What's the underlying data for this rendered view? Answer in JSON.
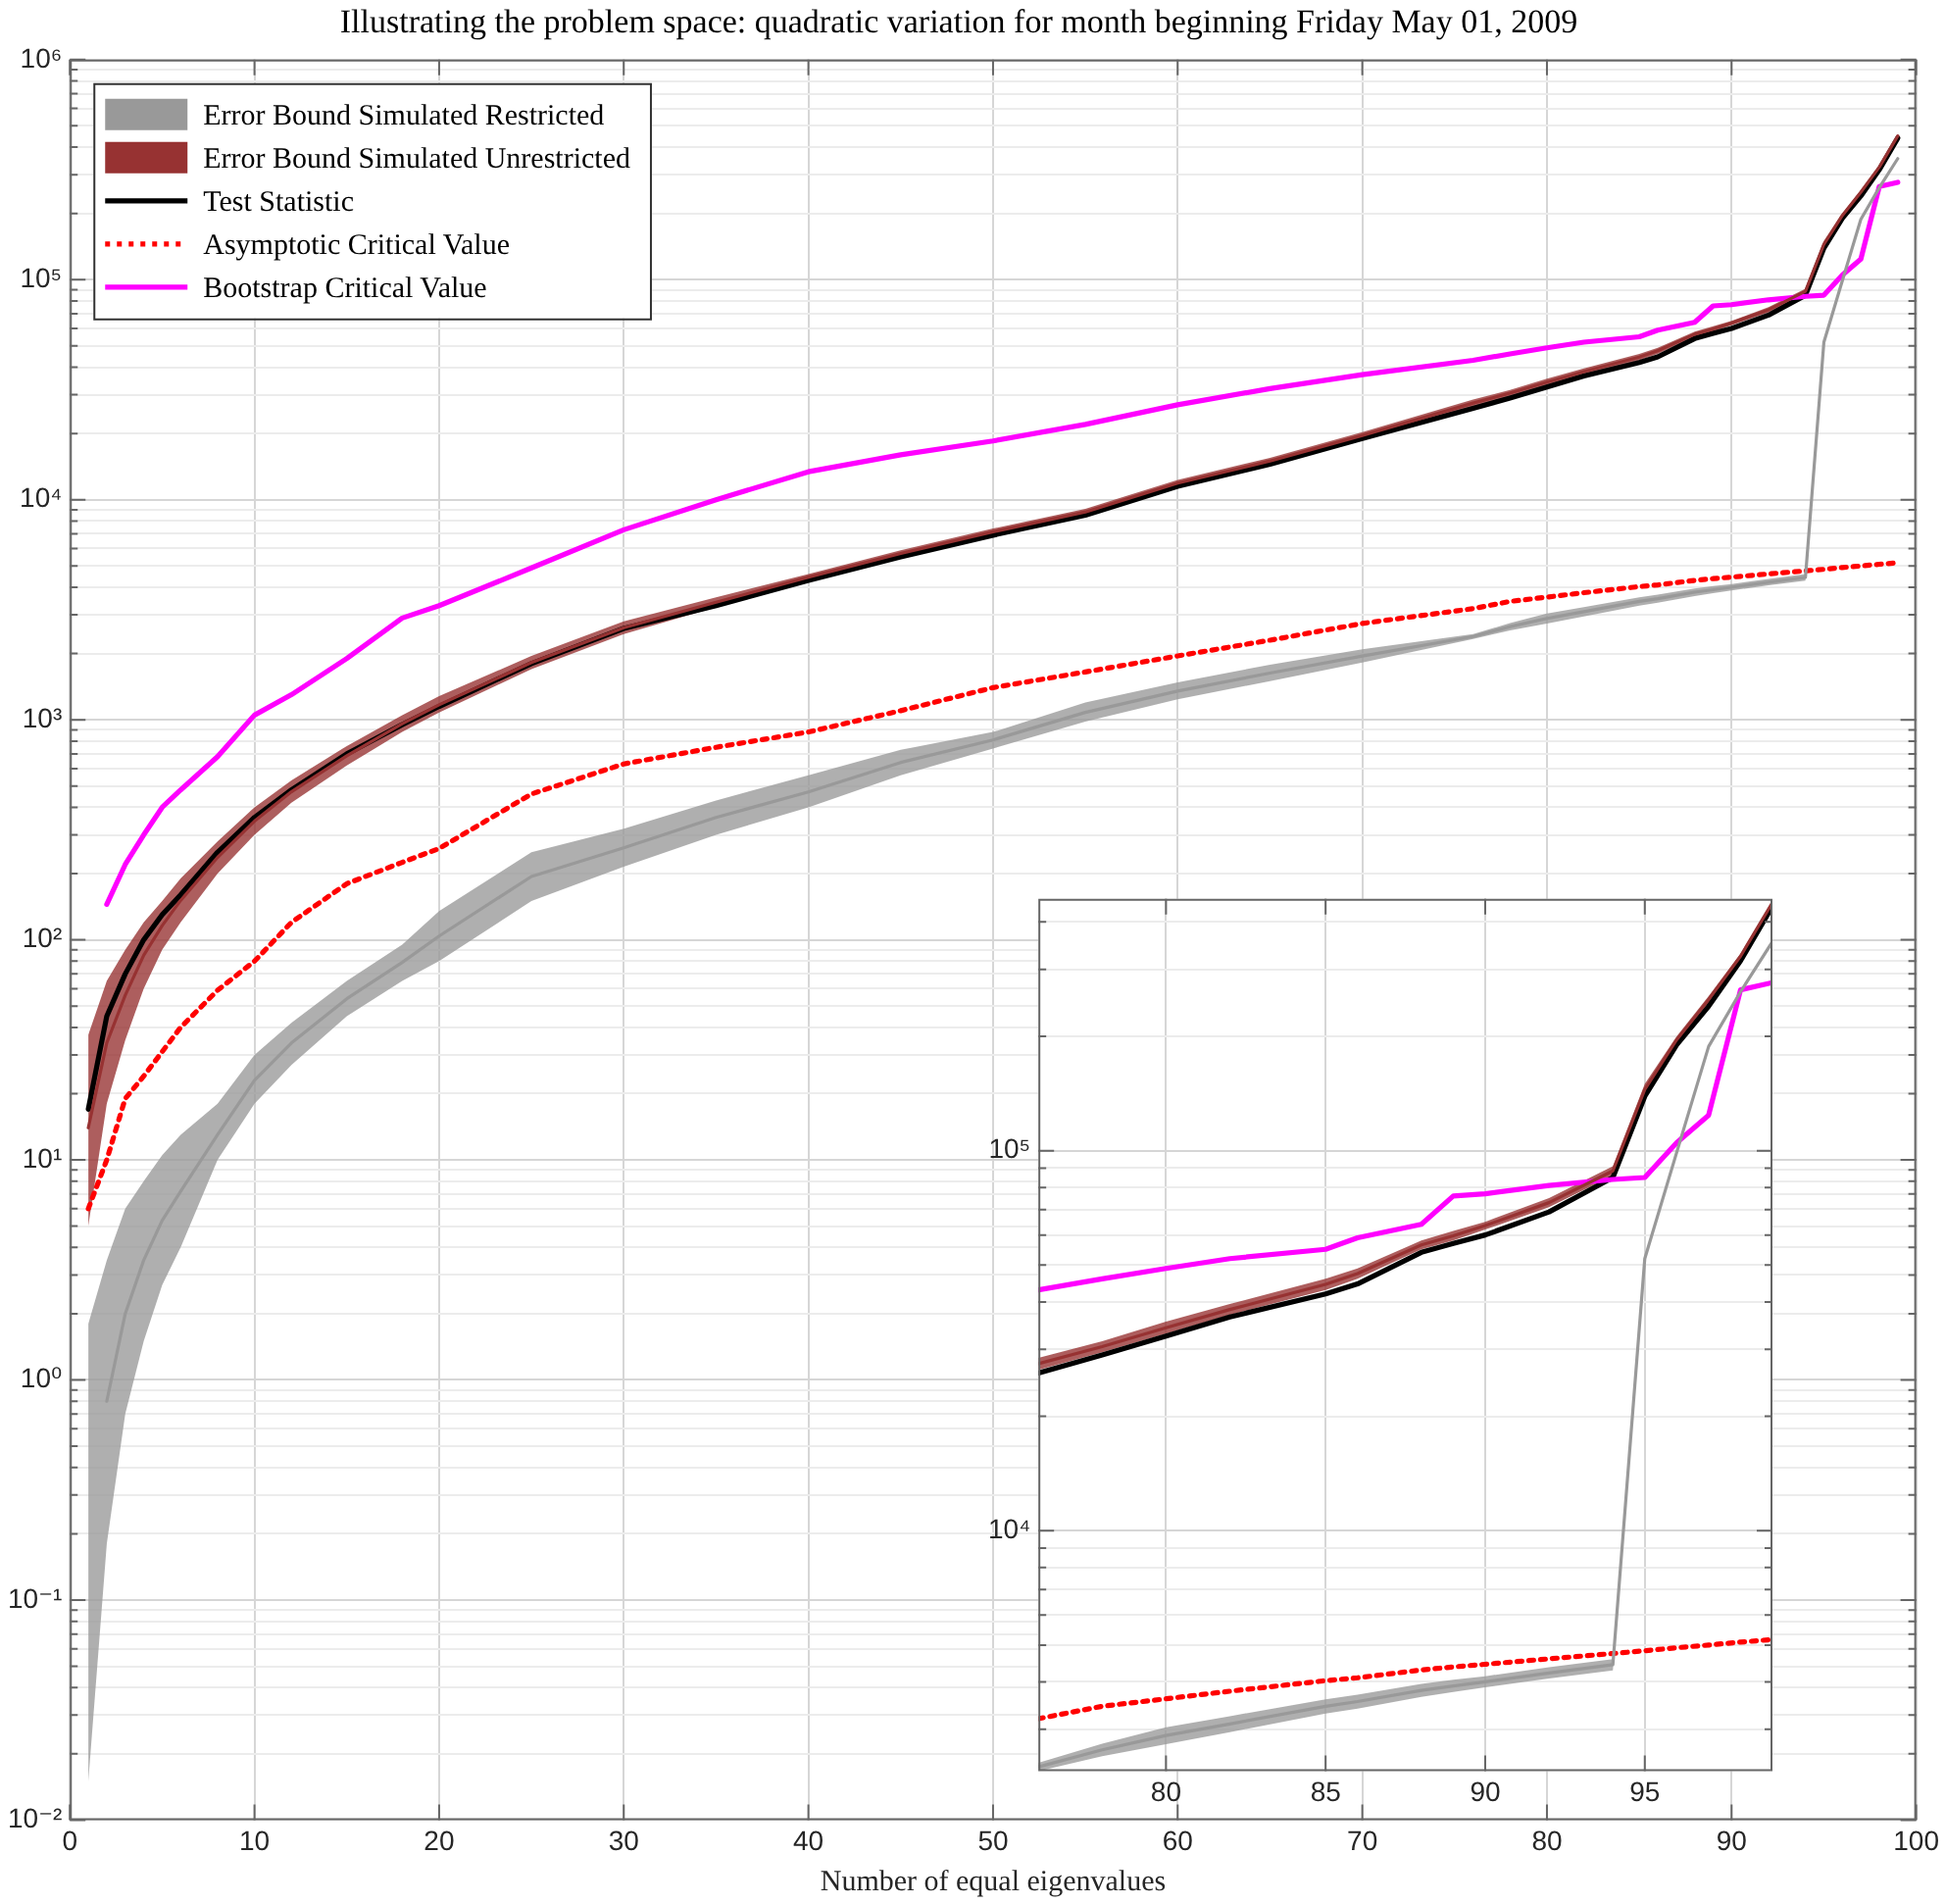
{
  "chart_data": [
    {
      "type": "line",
      "title": "Illustrating the problem space: quadratic variation for month beginning Friday May 01, 2009",
      "xlabel": "Number of equal eigenvalues",
      "x": [
        1,
        2,
        3,
        4,
        5,
        6,
        8,
        10,
        12,
        15,
        18,
        20,
        25,
        30,
        35,
        40,
        45,
        50,
        55,
        60,
        65,
        70,
        76,
        78,
        80,
        82,
        85,
        86,
        88,
        89,
        90,
        92,
        94,
        95,
        96,
        97,
        98,
        99
      ],
      "series": [
        {
          "name": "Error Bound Simulated Restricted",
          "color": "#999999",
          "values": [
            null,
            0.8,
            2,
            3.5,
            5.3,
            7.2,
            13,
            23,
            34,
            54,
            79,
            104,
            194,
            262,
            360,
            470,
            640,
            810,
            1080,
            1350,
            1630,
            1950,
            2390,
            2650,
            2890,
            3100,
            3450,
            3550,
            3800,
            3900,
            4000,
            4220,
            4440,
            52000,
            99000,
            188000,
            262000,
            355000
          ],
          "lower": [
            0.015,
            0.18,
            0.7,
            1.5,
            2.7,
            4,
            10,
            18,
            27,
            45,
            65,
            80,
            150,
            215,
            300,
            400,
            560,
            740,
            980,
            1240,
            1500,
            1820,
            2330,
            2550,
            2740,
            2950,
            3300,
            3400,
            3650,
            3760,
            3870,
            4080,
            4290,
            52000,
            99000,
            188000,
            262000,
            355000
          ],
          "upper": [
            1.8,
            3.5,
            6,
            8,
            10.5,
            13,
            18,
            30,
            42,
            65,
            95,
            135,
            250,
            320,
            430,
            560,
            730,
            880,
            1200,
            1480,
            1780,
            2090,
            2450,
            2750,
            3040,
            3250,
            3600,
            3700,
            3950,
            4050,
            4140,
            4370,
            4590,
            52000,
            99000,
            188000,
            262000,
            355000
          ]
        },
        {
          "name": "Error Bound Simulated Unrestricted",
          "color": "#973232",
          "values": [
            14,
            34,
            56,
            85,
            116,
            151,
            237,
            346,
            471,
            686,
            960,
            1170,
            1820,
            2620,
            3420,
            4450,
            5700,
            7150,
            8800,
            11900,
            15000,
            19600,
            27500,
            30500,
            34200,
            38200,
            44500,
            47500,
            56500,
            59700,
            63500,
            73000,
            88500,
            145000,
            196000,
            250000,
            325000,
            450000
          ],
          "lower": [
            5,
            18,
            35,
            60,
            90,
            120,
            200,
            300,
            420,
            620,
            880,
            1080,
            1700,
            2450,
            3250,
            4300,
            5500,
            6900,
            8500,
            11500,
            14500,
            19000,
            26500,
            29500,
            33000,
            37000,
            43000,
            46000,
            55000,
            58000,
            62000,
            71000,
            86000,
            140000,
            192000,
            245000,
            320000,
            445000
          ],
          "upper": [
            37,
            65,
            90,
            120,
            150,
            190,
            280,
            400,
            530,
            760,
            1050,
            1280,
            1950,
            2800,
            3600,
            4600,
            5900,
            7400,
            9100,
            12300,
            15500,
            20300,
            28500,
            31500,
            35500,
            39500,
            46000,
            49000,
            58000,
            61500,
            65000,
            75000,
            91000,
            150000,
            200000,
            255000,
            330000,
            455000
          ]
        },
        {
          "name": "Test Statistic",
          "color": "#000000",
          "values": [
            17,
            45,
            70,
            100,
            130,
            160,
            250,
            360,
            480,
            700,
            950,
            1150,
            1800,
            2600,
            3300,
            4300,
            5500,
            6900,
            8500,
            11500,
            14500,
            19000,
            26000,
            29000,
            32500,
            36500,
            42000,
            44600,
            54000,
            57000,
            60000,
            69000,
            85000,
            139000,
            190000,
            240000,
            316000,
            440000
          ]
        },
        {
          "name": "Asymptotic Critical Value",
          "color": "#ff0000",
          "line_style": "dotted",
          "values": [
            6,
            10,
            19,
            24,
            31,
            40,
            59,
            80,
            120,
            180,
            225,
            260,
            460,
            630,
            750,
            880,
            1100,
            1400,
            1650,
            1950,
            2300,
            2740,
            3200,
            3450,
            3610,
            3780,
            4030,
            4100,
            4300,
            4380,
            4450,
            4600,
            4750,
            4830,
            4920,
            5000,
            5090,
            5170
          ]
        },
        {
          "name": "Bootstrap Critical Value",
          "color": "#ff00ff",
          "values": [
            null,
            145,
            220,
            300,
            400,
            480,
            680,
            1050,
            1300,
            1900,
            2900,
            3300,
            4900,
            7300,
            10000,
            13400,
            16000,
            18500,
            22000,
            27000,
            32000,
            37000,
            43000,
            46000,
            49000,
            52000,
            55000,
            59000,
            64000,
            76000,
            77000,
            81000,
            84000,
            85000,
            105000,
            124000,
            265000,
            277000
          ]
        }
      ],
      "log": "y",
      "grid": true,
      "legend": "top left",
      "marker": "none",
      "xlim": [
        0,
        100
      ],
      "xticks": [
        0,
        10,
        20,
        30,
        40,
        50,
        60,
        70,
        80,
        90,
        100
      ],
      "ylim": [
        0.01,
        1000000
      ],
      "yticks": [
        {
          "value": 0.01,
          "label": "10⁻²"
        },
        {
          "value": 0.02,
          "label": null
        },
        {
          "value": 0.03,
          "label": null
        },
        {
          "value": 0.04,
          "label": null
        },
        {
          "value": 0.05,
          "label": null
        },
        {
          "value": 0.06,
          "label": null
        },
        {
          "value": 0.07,
          "label": null
        },
        {
          "value": 0.08,
          "label": null
        },
        {
          "value": 0.09,
          "label": null
        },
        {
          "value": 0.1,
          "label": "10⁻¹"
        },
        {
          "value": 0.2,
          "label": null
        },
        {
          "value": 0.3,
          "label": null
        },
        {
          "value": 0.4,
          "label": null
        },
        {
          "value": 0.5,
          "label": null
        },
        {
          "value": 0.6,
          "label": null
        },
        {
          "value": 0.7,
          "label": null
        },
        {
          "value": 0.8,
          "label": null
        },
        {
          "value": 0.9,
          "label": null
        },
        {
          "value": 1,
          "label": "10⁰"
        },
        {
          "value": 2,
          "label": null
        },
        {
          "value": 3,
          "label": null
        },
        {
          "value": 4,
          "label": null
        },
        {
          "value": 5,
          "label": null
        },
        {
          "value": 6,
          "label": null
        },
        {
          "value": 7,
          "label": null
        },
        {
          "value": 8,
          "label": null
        },
        {
          "value": 9,
          "label": null
        },
        {
          "value": 10,
          "label": "10¹"
        },
        {
          "value": 20,
          "label": null
        },
        {
          "value": 30,
          "label": null
        },
        {
          "value": 40,
          "label": null
        },
        {
          "value": 50,
          "label": null
        },
        {
          "value": 60,
          "label": null
        },
        {
          "value": 70,
          "label": null
        },
        {
          "value": 80,
          "label": null
        },
        {
          "value": 90,
          "label": null
        },
        {
          "value": 100,
          "label": "10²"
        },
        {
          "value": 200,
          "label": null
        },
        {
          "value": 300,
          "label": null
        },
        {
          "value": 400,
          "label": null
        },
        {
          "value": 500,
          "label": null
        },
        {
          "value": 600,
          "label": null
        },
        {
          "value": 700,
          "label": null
        },
        {
          "value": 800,
          "label": null
        },
        {
          "value": 900,
          "label": null
        },
        {
          "value": 1000,
          "label": "10³"
        },
        {
          "value": 2000,
          "label": null
        },
        {
          "value": 3000,
          "label": null
        },
        {
          "value": 4000,
          "label": null
        },
        {
          "value": 5000,
          "label": null
        },
        {
          "value": 6000,
          "label": null
        },
        {
          "value": 7000,
          "label": null
        },
        {
          "value": 8000,
          "label": null
        },
        {
          "value": 9000,
          "label": null
        },
        {
          "value": 10000,
          "label": "10⁴"
        },
        {
          "value": 20000,
          "label": null
        },
        {
          "value": 30000,
          "label": null
        },
        {
          "value": 40000,
          "label": null
        },
        {
          "value": 50000,
          "label": null
        },
        {
          "value": 60000,
          "label": null
        },
        {
          "value": 70000,
          "label": null
        },
        {
          "value": 80000,
          "label": null
        },
        {
          "value": 90000,
          "label": null
        },
        {
          "value": 100000,
          "label": "10⁵"
        },
        {
          "value": 200000,
          "label": null
        },
        {
          "value": 300000,
          "label": null
        },
        {
          "value": 400000,
          "label": null
        },
        {
          "value": 500000,
          "label": null
        },
        {
          "value": 600000,
          "label": null
        },
        {
          "value": 700000,
          "label": null
        },
        {
          "value": 800000,
          "label": null
        },
        {
          "value": 900000,
          "label": null
        },
        {
          "value": 1000000,
          "label": "10⁶"
        }
      ]
    },
    {
      "type": "line",
      "x": [
        76,
        78,
        80,
        82,
        85,
        86,
        88,
        89,
        90,
        92,
        94,
        95,
        96,
        97,
        98,
        99
      ],
      "series": [
        {
          "color": "#999999",
          "values": [
            2390,
            2650,
            2890,
            3100,
            3450,
            3550,
            3800,
            3900,
            4000,
            4220,
            4440,
            52000,
            99000,
            188000,
            262000,
            355000
          ],
          "lower": [
            2330,
            2550,
            2740,
            2950,
            3300,
            3400,
            3650,
            3760,
            3870,
            4080,
            4290,
            52000,
            99000,
            188000,
            262000,
            355000
          ],
          "upper": [
            2450,
            2750,
            3040,
            3250,
            3600,
            3700,
            3950,
            4050,
            4140,
            4370,
            4590,
            52000,
            99000,
            188000,
            262000,
            355000
          ]
        },
        {
          "color": "#973232",
          "values": [
            27500,
            30500,
            34200,
            38200,
            44500,
            47500,
            56500,
            59700,
            63500,
            73000,
            88500,
            145000,
            196000,
            250000,
            325000,
            450000
          ],
          "lower": [
            26500,
            29500,
            33000,
            37000,
            43000,
            46000,
            55000,
            58000,
            62000,
            71000,
            86000,
            140000,
            192000,
            245000,
            320000,
            445000
          ],
          "upper": [
            28500,
            31500,
            35500,
            39500,
            46000,
            49000,
            58000,
            61500,
            65000,
            75000,
            91000,
            150000,
            200000,
            255000,
            330000,
            455000
          ]
        },
        {
          "color": "#000000",
          "values": [
            26000,
            29000,
            32500,
            36500,
            42000,
            44600,
            54000,
            57000,
            60000,
            69000,
            85000,
            139000,
            190000,
            240000,
            316000,
            440000
          ]
        },
        {
          "color": "#ff0000",
          "line_style": "dotted",
          "values": [
            3200,
            3450,
            3610,
            3780,
            4030,
            4100,
            4300,
            4380,
            4450,
            4600,
            4750,
            4830,
            4920,
            5000,
            5090,
            5170
          ]
        },
        {
          "color": "#ff00ff",
          "values": [
            43000,
            46000,
            49000,
            52000,
            55000,
            59000,
            64000,
            76000,
            77000,
            81000,
            84000,
            85000,
            105000,
            124000,
            265000,
            277000
          ]
        }
      ],
      "log": "y",
      "grid": true,
      "marker": "none",
      "xlim": [
        76,
        99
      ],
      "xticks": [
        80,
        85,
        90,
        95
      ],
      "ylim": [
        2330,
        460000
      ],
      "yticks": [
        {
          "value": 3000,
          "label": null
        },
        {
          "value": 4000,
          "label": null
        },
        {
          "value": 5000,
          "label": null
        },
        {
          "value": 6000,
          "label": null
        },
        {
          "value": 7000,
          "label": null
        },
        {
          "value": 8000,
          "label": null
        },
        {
          "value": 9000,
          "label": null
        },
        {
          "value": 10000,
          "label": "10⁴"
        },
        {
          "value": 20000,
          "label": null
        },
        {
          "value": 30000,
          "label": null
        },
        {
          "value": 40000,
          "label": null
        },
        {
          "value": 50000,
          "label": null
        },
        {
          "value": 60000,
          "label": null
        },
        {
          "value": 70000,
          "label": null
        },
        {
          "value": 80000,
          "label": null
        },
        {
          "value": 90000,
          "label": null
        },
        {
          "value": 100000,
          "label": "10⁵"
        },
        {
          "value": 200000,
          "label": null
        },
        {
          "value": 300000,
          "label": null
        },
        {
          "value": 400000,
          "label": null
        }
      ]
    }
  ]
}
